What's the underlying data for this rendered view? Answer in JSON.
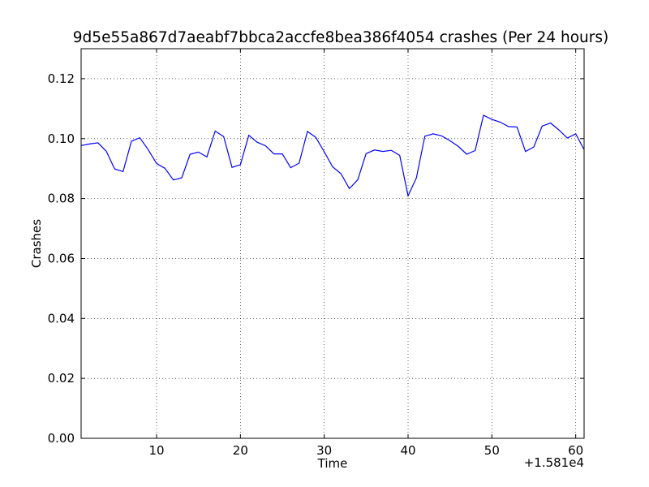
{
  "chart_data": {
    "type": "line",
    "title": "9d5e55a867d7aeabf7bbca2accfe8bea386f4054 crashes (Per 24 hours)",
    "xlabel": "Time",
    "ylabel": "Crashes",
    "x_offset_label": "+1.581e4",
    "xlim": [
      1,
      61
    ],
    "ylim": [
      0,
      0.13
    ],
    "xticks": [
      10,
      20,
      30,
      40,
      50,
      60
    ],
    "yticks": [
      0.0,
      0.02,
      0.04,
      0.06,
      0.08,
      0.1,
      0.12
    ],
    "xtick_labels": [
      "10",
      "20",
      "30",
      "40",
      "50",
      "60"
    ],
    "ytick_labels": [
      "0.00",
      "0.02",
      "0.04",
      "0.06",
      "0.08",
      "0.10",
      "0.12"
    ],
    "grid": true,
    "line_color": "#0000ff",
    "series": [
      {
        "x": [
          1,
          2,
          3,
          4,
          5,
          6,
          7,
          8,
          9,
          10,
          11,
          12,
          13,
          14,
          15,
          16,
          17,
          18,
          19,
          20,
          21,
          22,
          23,
          24,
          25,
          26,
          27,
          28,
          29,
          30,
          31,
          32,
          33,
          34,
          35,
          36,
          37,
          38,
          39,
          40,
          41,
          42,
          43,
          44,
          45,
          46,
          47,
          48,
          49,
          50,
          51,
          52,
          53,
          54,
          55,
          56,
          57,
          58,
          59,
          60,
          61
        ],
        "values": [
          0.0977,
          0.0982,
          0.0986,
          0.0958,
          0.0899,
          0.089,
          0.0991,
          0.1003,
          0.0963,
          0.0917,
          0.0901,
          0.0862,
          0.0869,
          0.0948,
          0.0955,
          0.0939,
          0.1025,
          0.1007,
          0.0904,
          0.0913,
          0.1011,
          0.0988,
          0.0976,
          0.0949,
          0.0949,
          0.0903,
          0.0918,
          0.1024,
          0.1004,
          0.0956,
          0.0906,
          0.0883,
          0.0833,
          0.0863,
          0.095,
          0.0962,
          0.0957,
          0.0961,
          0.0944,
          0.0809,
          0.0869,
          0.1008,
          0.1016,
          0.1009,
          0.0993,
          0.0974,
          0.0948,
          0.096,
          0.1078,
          0.1064,
          0.1055,
          0.104,
          0.1039,
          0.0957,
          0.0972,
          0.1042,
          0.1052,
          0.1029,
          0.1002,
          0.1016,
          0.0963
        ]
      }
    ]
  }
}
